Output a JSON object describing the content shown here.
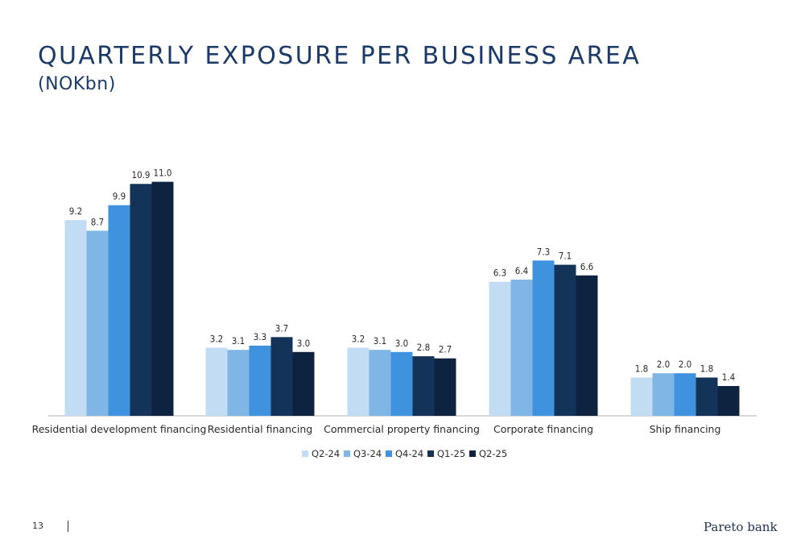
{
  "page": {
    "title": "QUARTERLY EXPOSURE PER BUSINESS AREA",
    "subtitle": "(NOKbn)",
    "page_number": "13",
    "logo_text": "Pareto bank"
  },
  "colors": {
    "Q2-24": "#c2dcf3",
    "Q3-24": "#80b6e6",
    "Q4-24": "#3f92dd",
    "Q1-25": "#133458",
    "Q2-25": "#0e2340",
    "axis": "#b0b0b0",
    "text": "#2a2a2a"
  },
  "chart_data": {
    "type": "bar",
    "categories": [
      "Residential development financing",
      "Residential financing",
      "Commercial property financing",
      "Corporate financing",
      "Ship financing"
    ],
    "series": [
      {
        "name": "Q2-24",
        "values": [
          9.2,
          3.2,
          3.2,
          6.3,
          1.8
        ]
      },
      {
        "name": "Q3-24",
        "values": [
          8.7,
          3.1,
          3.1,
          6.4,
          2.0
        ]
      },
      {
        "name": "Q4-24",
        "values": [
          9.9,
          3.3,
          3.0,
          7.3,
          2.0
        ]
      },
      {
        "name": "Q1-25",
        "values": [
          10.9,
          3.7,
          2.8,
          7.1,
          1.8
        ]
      },
      {
        "name": "Q2-25",
        "values": [
          11.0,
          3.0,
          2.7,
          6.6,
          1.4
        ]
      }
    ],
    "data_labels": [
      [
        "9.2",
        "3.2",
        "3.2",
        "6.3",
        "1.8"
      ],
      [
        "8.7",
        "3.1",
        "3.1",
        "6.4",
        "2.0"
      ],
      [
        "9.9",
        "3.3",
        "3.0",
        "7.3",
        "2.0"
      ],
      [
        "10.9",
        "3.7",
        "2.8",
        "7.1",
        "1.8"
      ],
      [
        "11.0",
        "3.0",
        "2.7",
        "6.6",
        "1.4"
      ]
    ],
    "ylim": [
      0,
      11
    ],
    "grid": false,
    "legend_position": "bottom"
  }
}
